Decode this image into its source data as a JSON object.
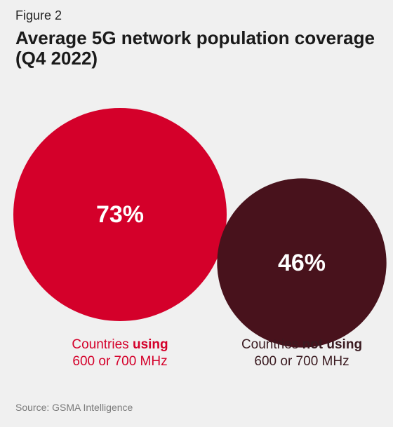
{
  "figure_label": "Figure 2",
  "title": "Average 5G network population coverage (Q4 2022)",
  "source": "Source: GSMA Intelligence",
  "colors": {
    "using": "#d4002a",
    "not_using": "#48121c",
    "background": "#f0f0f0"
  },
  "chart_data": {
    "type": "bubble",
    "title": "Average 5G network population coverage (Q4 2022)",
    "categories": [
      "Countries using 600 or 700 MHz",
      "Countries not using 600 or 700 MHz"
    ],
    "values": [
      73,
      46
    ],
    "value_labels": [
      "73%",
      "46%"
    ],
    "label_parts": [
      {
        "prefix": "Countries ",
        "emphasis": "using",
        "line2": "600 or 700 MHz"
      },
      {
        "prefix": "Countries ",
        "emphasis": "not using",
        "line2": "600 or 700 MHz"
      }
    ]
  }
}
